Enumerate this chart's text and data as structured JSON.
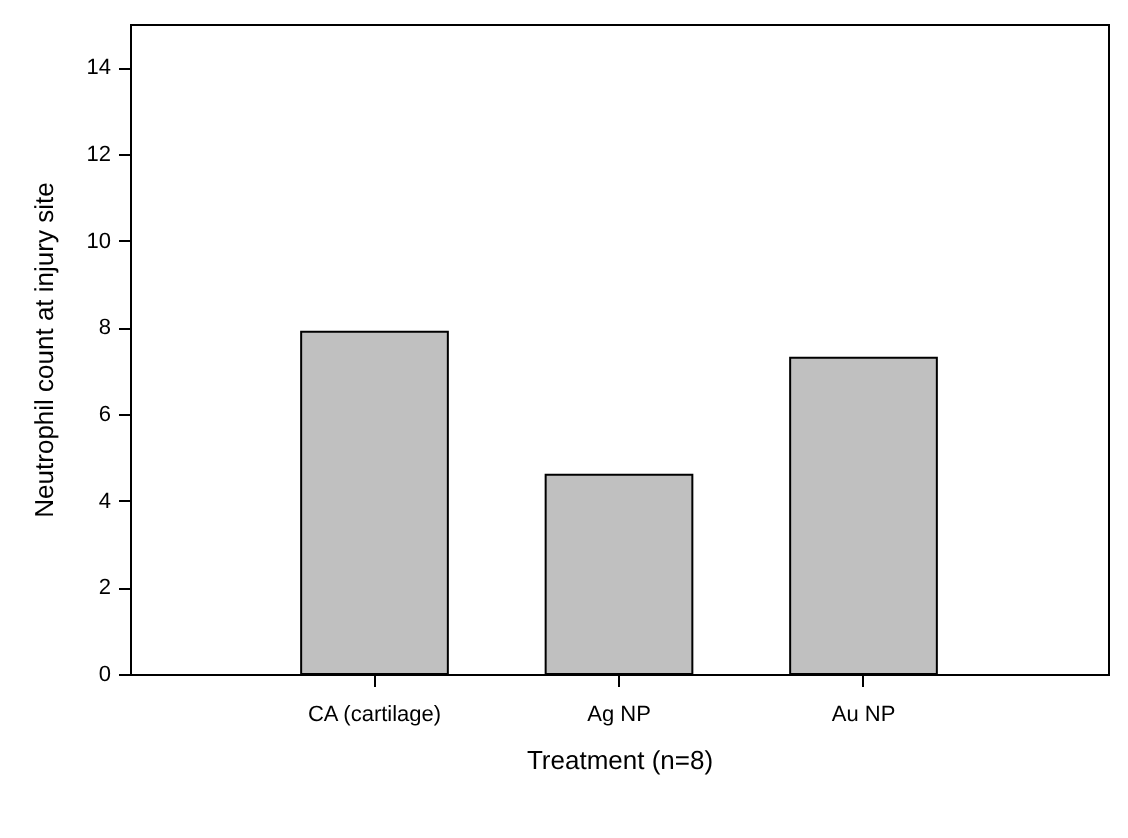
{
  "chart_data": {
    "type": "bar",
    "xlabel": "Treatment (n=8)",
    "ylabel": "Neutrophil count at injury site",
    "categories": [
      "CA (cartilage)",
      "Ag NP",
      "Au NP"
    ],
    "values": [
      7.9,
      4.6,
      7.3
    ],
    "color": "#c0c0c0",
    "ylim": [
      0,
      15
    ],
    "yticks": [
      0,
      2,
      4,
      6,
      8,
      10,
      12,
      14
    ],
    "grid": false
  }
}
